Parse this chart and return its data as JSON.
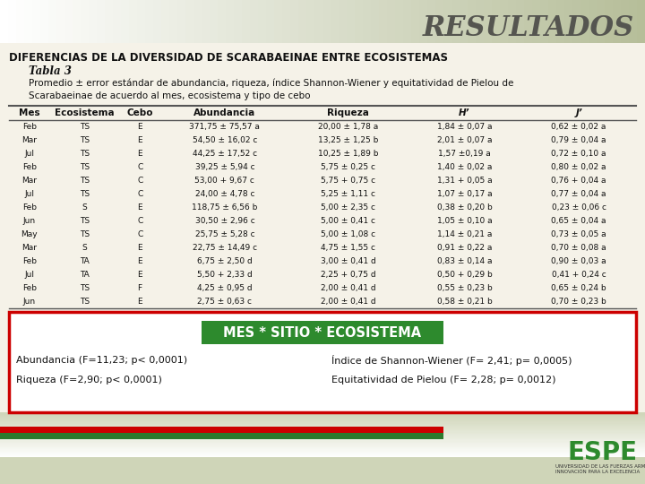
{
  "title": "RESULTADOS",
  "heading": "DIFERENCIAS DE LA DIVERSIDAD DE SCARABAEINAE ENTRE ECOSISTEMAS",
  "tabla_label": "Tabla 3",
  "subtitle": "Promedio ± error estándar de abundancia, riqueza, índice Shannon-Wiener y equitatividad de Pielou de\nScarabaeinae de acuerdo al mes, ecosistema y tipo de cebo",
  "col_headers": [
    "Mes",
    "Ecosistema",
    "Cebo",
    "Abundancia",
    "Riqueza",
    "H’",
    "J’"
  ],
  "rows": [
    [
      "Feb",
      "TS",
      "E",
      "371,75 ± 75,57 a",
      "20,00 ± 1,78 a",
      "1,84 ± 0,07 a",
      "0,62 ± 0,02 a"
    ],
    [
      "Mar",
      "TS",
      "E",
      "54,50 ± 16,02 c",
      "13,25 ± 1,25 b",
      "2,01 ± 0,07 a",
      "0,79 ± 0,04 a"
    ],
    [
      "Jul",
      "TS",
      "E",
      "44,25 ± 17,52 c",
      "10,25 ± 1,89 b",
      "1,57 ±0,19 a",
      "0,72 ± 0,10 a"
    ],
    [
      "Feb",
      "TS",
      "C",
      "39,25 ± 5,94 c",
      "5,75 ± 0,25 c",
      "1,40 ± 0,02 a",
      "0,80 ± 0,02 a"
    ],
    [
      "Mar",
      "TS",
      "C",
      "53,00 + 9,67 c",
      "5,75 + 0,75 c",
      "1,31 + 0,05 a",
      "0,76 + 0,04 a"
    ],
    [
      "Jul",
      "TS",
      "C",
      "24,00 ± 4,78 c",
      "5,25 ± 1,11 c",
      "1,07 ± 0,17 a",
      "0,77 ± 0,04 a"
    ],
    [
      "Feb",
      "S",
      "E",
      "118,75 ± 6,56 b",
      "5,00 ± 2,35 c",
      "0,38 ± 0,20 b",
      "0,23 ± 0,06 c"
    ],
    [
      "Jun",
      "TS",
      "C",
      "30,50 ± 2,96 c",
      "5,00 ± 0,41 c",
      "1,05 ± 0,10 a",
      "0,65 ± 0,04 a"
    ],
    [
      "May",
      "TS",
      "C",
      "25,75 ± 5,28 c",
      "5,00 ± 1,08 c",
      "1,14 ± 0,21 a",
      "0,73 ± 0,05 a"
    ],
    [
      "Mar",
      "S",
      "E",
      "22,75 ± 14,49 c",
      "4,75 ± 1,55 c",
      "0,91 ± 0,22 a",
      "0,70 ± 0,08 a"
    ],
    [
      "Feb",
      "TA",
      "E",
      "6,75 ± 2,50 d",
      "3,00 ± 0,41 d",
      "0,83 ± 0,14 a",
      "0,90 ± 0,03 a"
    ],
    [
      "Jul",
      "TA",
      "E",
      "5,50 + 2,33 d",
      "2,25 + 0,75 d",
      "0,50 + 0,29 b",
      "0,41 + 0,24 c"
    ],
    [
      "Feb",
      "TS",
      "F",
      "4,25 ± 0,95 d",
      "2,00 ± 0,41 d",
      "0,55 ± 0,23 b",
      "0,65 ± 0,24 b"
    ],
    [
      "Jun",
      "TS",
      "E",
      "2,75 ± 0,63 c",
      "2,00 ± 0,41 d",
      "0,58 ± 0,21 b",
      "0,70 ± 0,23 b"
    ]
  ],
  "box_label": "MES * SITIO * ECOSISTEMA",
  "stats": [
    [
      "Abundancia (F=11,23; p< 0,0001)",
      "Índice de Shannon-Wiener (F= 2,41; p= 0,0005)"
    ],
    [
      "Riqueza (F=2,90; p< 0,0001)",
      "Equitatividad de Pielou (F= 2,28; p= 0,0012)"
    ]
  ],
  "bg_color": "#cfd5b8",
  "red_box_color": "#cc0000",
  "green_box_color": "#2d8a2d",
  "stripe_red": "#cc0000",
  "stripe_green": "#2d7a2d",
  "title_gradient_left": "#d8ddc5",
  "title_gradient_right": "#b5bd98",
  "table_bg": "#f0ede0",
  "white": "#ffffff"
}
